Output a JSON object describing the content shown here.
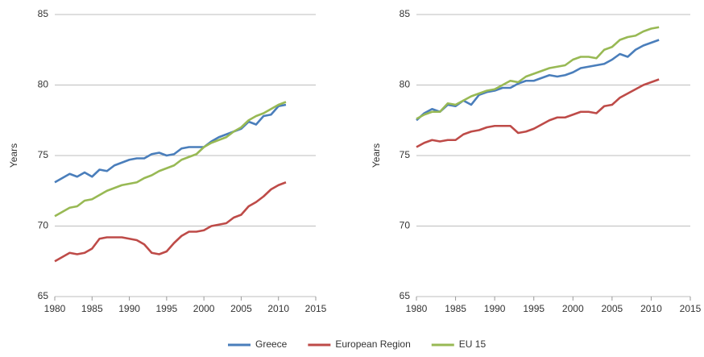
{
  "chart_data": [
    {
      "type": "line",
      "y_label": "Years",
      "x": [
        1980,
        1981,
        1982,
        1983,
        1984,
        1985,
        1986,
        1987,
        1988,
        1989,
        1990,
        1991,
        1992,
        1993,
        1994,
        1995,
        1996,
        1997,
        1998,
        1999,
        2000,
        2001,
        2002,
        2003,
        2004,
        2005,
        2006,
        2007,
        2008,
        2009,
        2010,
        2011
      ],
      "xlim": [
        1980,
        2015
      ],
      "xticks": [
        1980,
        1985,
        1990,
        1995,
        2000,
        2005,
        2010,
        2015
      ],
      "ylim": [
        65,
        85
      ],
      "yticks": [
        65,
        70,
        75,
        80,
        85
      ],
      "grid": true,
      "series": [
        {
          "name": "Greece",
          "color": "#4a7ebb",
          "values": [
            73.1,
            73.4,
            73.7,
            73.5,
            73.8,
            73.5,
            74.0,
            73.9,
            74.3,
            74.5,
            74.7,
            74.8,
            74.8,
            75.1,
            75.2,
            75.0,
            75.1,
            75.5,
            75.6,
            75.6,
            75.6,
            76.0,
            76.3,
            76.5,
            76.7,
            76.9,
            77.4,
            77.2,
            77.8,
            77.9,
            78.5,
            78.6
          ]
        },
        {
          "name": "European Region",
          "color": "#be4b48",
          "values": [
            67.5,
            67.8,
            68.1,
            68.0,
            68.1,
            68.4,
            69.1,
            69.2,
            69.2,
            69.2,
            69.1,
            69.0,
            68.7,
            68.1,
            68.0,
            68.2,
            68.8,
            69.3,
            69.6,
            69.6,
            69.7,
            70.0,
            70.1,
            70.2,
            70.6,
            70.8,
            71.4,
            71.7,
            72.1,
            72.6,
            72.9,
            73.1
          ]
        },
        {
          "name": "EU 15",
          "color": "#98b954",
          "values": [
            70.7,
            71.0,
            71.3,
            71.4,
            71.8,
            71.9,
            72.2,
            72.5,
            72.7,
            72.9,
            73.0,
            73.1,
            73.4,
            73.6,
            73.9,
            74.1,
            74.3,
            74.7,
            74.9,
            75.1,
            75.6,
            75.9,
            76.1,
            76.3,
            76.7,
            77.0,
            77.5,
            77.8,
            78.0,
            78.3,
            78.6,
            78.8
          ]
        }
      ]
    },
    {
      "type": "line",
      "y_label": "Years",
      "x": [
        1980,
        1981,
        1982,
        1983,
        1984,
        1985,
        1986,
        1987,
        1988,
        1989,
        1990,
        1991,
        1992,
        1993,
        1994,
        1995,
        1996,
        1997,
        1998,
        1999,
        2000,
        2001,
        2002,
        2003,
        2004,
        2005,
        2006,
        2007,
        2008,
        2009,
        2010,
        2011
      ],
      "xlim": [
        1980,
        2015
      ],
      "xticks": [
        1980,
        1985,
        1990,
        1995,
        2000,
        2005,
        2010,
        2015
      ],
      "ylim": [
        65,
        85
      ],
      "yticks": [
        65,
        70,
        75,
        80,
        85
      ],
      "grid": true,
      "series": [
        {
          "values": [
            77.5,
            78.0,
            78.3,
            78.1,
            78.6,
            78.5,
            78.9,
            78.6,
            79.3,
            79.5,
            79.6,
            79.8,
            79.8,
            80.1,
            80.3,
            80.3,
            80.5,
            80.7,
            80.6,
            80.7,
            80.9,
            81.2,
            81.3,
            81.4,
            81.5,
            81.8,
            82.2,
            82.0,
            82.5,
            82.8,
            83.0,
            83.2
          ]
        },
        {
          "values": [
            75.6,
            75.9,
            76.1,
            76.0,
            76.1,
            76.1,
            76.5,
            76.7,
            76.8,
            77.0,
            77.1,
            77.1,
            77.1,
            76.6,
            76.7,
            76.9,
            77.2,
            77.5,
            77.7,
            77.7,
            77.9,
            78.1,
            78.1,
            78.0,
            78.5,
            78.6,
            79.1,
            79.4,
            79.7,
            80.0,
            80.2,
            80.4
          ]
        },
        {
          "values": [
            77.6,
            77.9,
            78.1,
            78.1,
            78.7,
            78.6,
            78.9,
            79.2,
            79.4,
            79.6,
            79.7,
            80.0,
            80.3,
            80.2,
            80.6,
            80.8,
            81.0,
            81.2,
            81.3,
            81.4,
            81.8,
            82.0,
            82.0,
            81.9,
            82.5,
            82.7,
            83.2,
            83.4,
            83.5,
            83.8,
            84.0,
            84.1
          ]
        }
      ]
    }
  ]
}
